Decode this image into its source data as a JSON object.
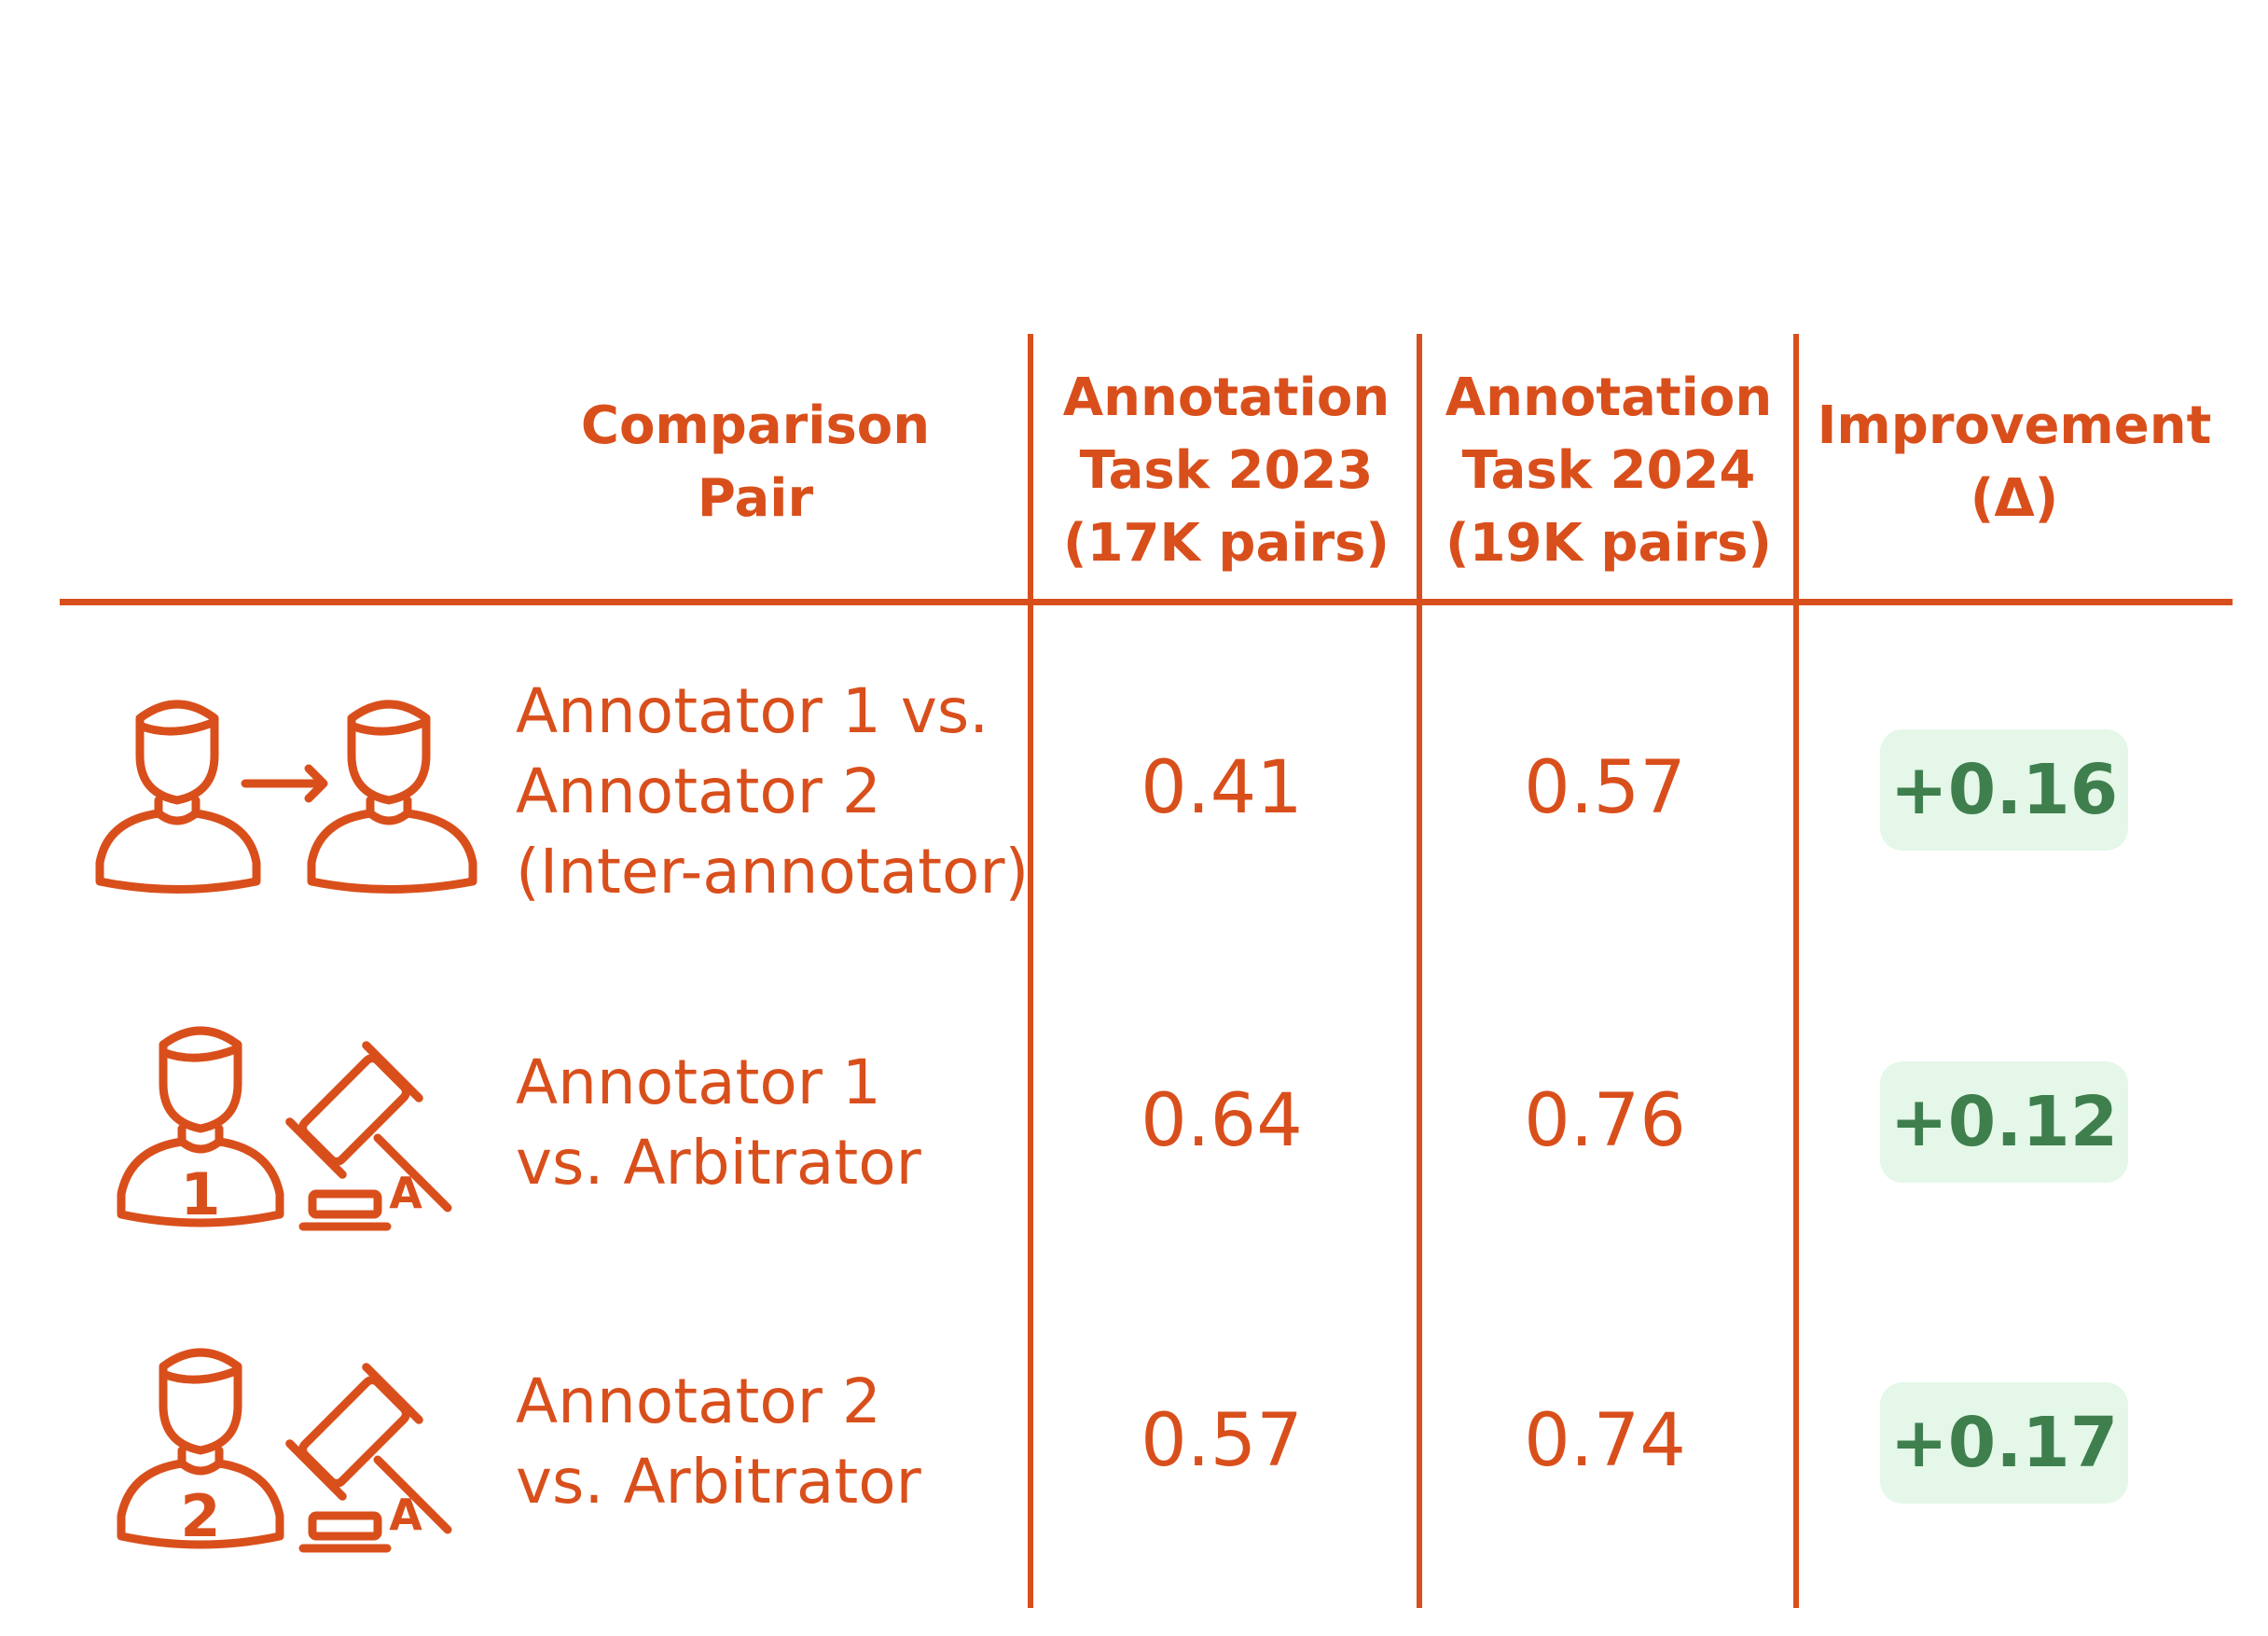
{
  "chart_data": {
    "type": "table",
    "columns": [
      "Comparison\nPair",
      "Annotation\nTask 2023\n(17K pairs)",
      "Annotation\nTask 2024\n(19K pairs)",
      "Improvement\n(Δ)"
    ],
    "rows": [
      {
        "icon": "annotator-to-annotator-icon",
        "label": "Annotator 1 vs.\nAnnotator 2\n(Inter-annotator)",
        "v2023": "0.41",
        "v2024": "0.57",
        "delta": "+0.16"
      },
      {
        "icon": "annotator-1-arbitrator-icon",
        "icon_number": "1",
        "icon_letter": "A",
        "label": "Annotator 1\nvs. Arbitrator",
        "v2023": "0.64",
        "v2024": "0.76",
        "delta": "+0.12"
      },
      {
        "icon": "annotator-2-arbitrator-icon",
        "icon_number": "2",
        "icon_letter": "A",
        "label": "Annotator 2\nvs. Arbitrator",
        "v2023": "0.57",
        "v2024": "0.74",
        "delta": "+0.17"
      }
    ],
    "colors": {
      "accent": "#d94f1c",
      "badge_bg": "#e4f7e8",
      "badge_text": "#3f7f4e"
    }
  }
}
